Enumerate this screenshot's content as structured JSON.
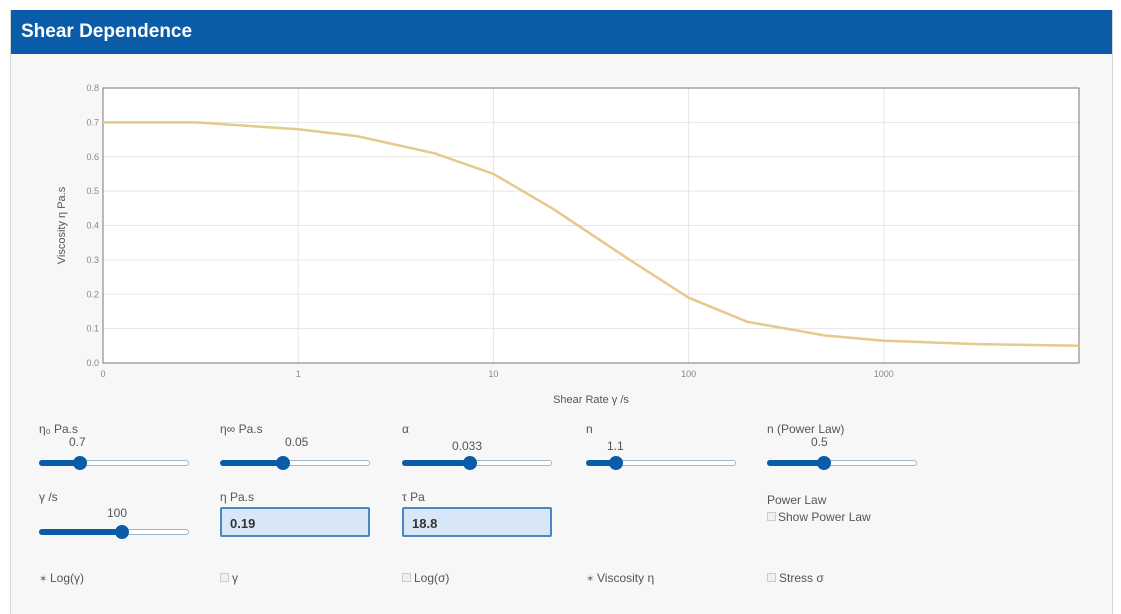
{
  "header": {
    "title": "Shear Dependence"
  },
  "chart_data": {
    "type": "line",
    "title": "",
    "xlabel": "Shear Rate γ /s",
    "ylabel": "Viscosity η Pa.s",
    "x_scale": "log",
    "x_ticks": [
      "0",
      "1",
      "10",
      "100",
      "1000"
    ],
    "y_ticks": [
      "0.0",
      "0.1",
      "0.2",
      "0.3",
      "0.4",
      "0.5",
      "0.6",
      "0.7",
      "0.8"
    ],
    "ylim": [
      0,
      0.8
    ],
    "xlim": [
      0.1,
      10000
    ],
    "grid": true,
    "series": [
      {
        "color": "#e6c98c",
        "x": [
          0.1,
          0.3,
          1,
          2,
          5,
          10,
          20,
          50,
          100,
          200,
          500,
          1000,
          3000,
          10000
        ],
        "y": [
          0.7,
          0.7,
          0.68,
          0.66,
          0.61,
          0.55,
          0.45,
          0.3,
          0.19,
          0.12,
          0.08,
          0.065,
          0.055,
          0.05
        ]
      }
    ]
  },
  "controls": {
    "eta0": {
      "label": "η₀ Pa.s",
      "value": "0.7",
      "fraction": 0.27
    },
    "etainf": {
      "label": "η∞ Pa.s",
      "value": "0.05",
      "fraction": 0.42
    },
    "alpha": {
      "label": "α",
      "value": "0.033",
      "fraction": 0.45
    },
    "n": {
      "label": "n",
      "value": "1.1",
      "fraction": 0.2
    },
    "n_power": {
      "label": "n (Power Law)",
      "value": "0.5",
      "fraction": 0.38
    },
    "gamma": {
      "label": "γ /s",
      "value": "100",
      "fraction": 0.55
    }
  },
  "outputs": {
    "eta": {
      "label": "η Pa.s",
      "value": "0.19"
    },
    "tau": {
      "label": "τ Pa",
      "value": "18.8"
    }
  },
  "power_law": {
    "label": "Power Law",
    "checkbox_label": "Show Power Law"
  },
  "options": {
    "log_gamma": {
      "label": "Log(γ)",
      "selected": true
    },
    "gamma": {
      "label": "γ",
      "selected": false
    },
    "log_sigma": {
      "label": "Log(σ)",
      "selected": false
    },
    "viscosity": {
      "label": "Viscosity η",
      "selected": true
    },
    "stress": {
      "label": "Stress σ",
      "selected": false
    }
  }
}
